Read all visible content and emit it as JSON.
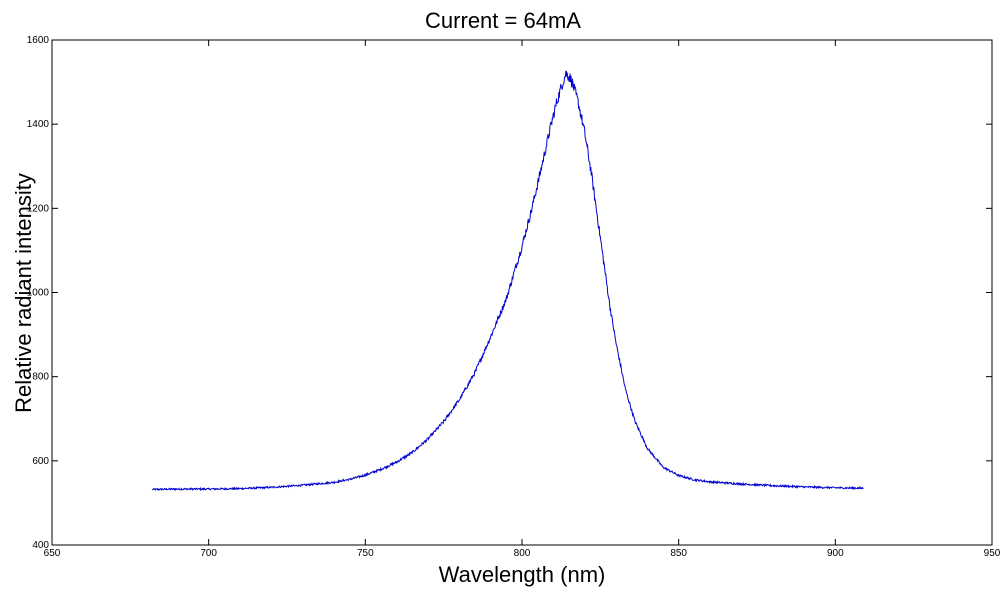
{
  "chart_data": {
    "type": "line",
    "title": "Current = 64mA",
    "xlabel": "Wavelength (nm)",
    "ylabel": "Relative radiant intensity",
    "xlim": [
      650,
      950
    ],
    "ylim": [
      400,
      1600
    ],
    "xticks": [
      "650",
      "700",
      "750",
      "800",
      "850",
      "900",
      "950"
    ],
    "yticks": [
      "400",
      "600",
      "800",
      "1000",
      "1200",
      "1400",
      "1600"
    ],
    "grid": false,
    "legend": "none",
    "line_color": "#0000cc",
    "series": [
      {
        "x": [
          682,
          690,
          700,
          710,
          720,
          730,
          740,
          745,
          750,
          755,
          760,
          765,
          770,
          775,
          780,
          785,
          790,
          795,
          800,
          803,
          806,
          809,
          811,
          813,
          814,
          815,
          816,
          818,
          820,
          822,
          825,
          828,
          830,
          833,
          836,
          840,
          845,
          850,
          855,
          860,
          870,
          880,
          890,
          900,
          909
        ],
        "y": [
          532,
          533,
          533,
          534,
          537,
          542,
          549,
          556,
          566,
          580,
          597,
          620,
          652,
          693,
          745,
          810,
          895,
          985,
          1110,
          1195,
          1290,
          1390,
          1450,
          1500,
          1520,
          1515,
          1500,
          1450,
          1380,
          1290,
          1130,
          970,
          880,
          770,
          695,
          630,
          585,
          565,
          555,
          550,
          545,
          541,
          538,
          536,
          535
        ]
      }
    ]
  }
}
